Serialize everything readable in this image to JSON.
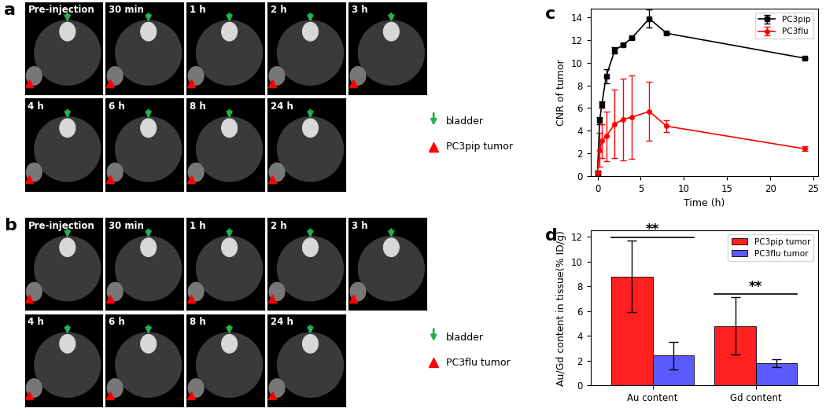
{
  "image_panels": [
    {
      "panel": "a",
      "frames": [
        "Pre-injection",
        "30 min",
        "1 h",
        "2 h",
        "3 h",
        "4 h",
        "6 h",
        "8 h",
        "24 h"
      ],
      "keys": [
        {
          "label": "bladder",
          "color": "#22b14c",
          "marker": "arrow"
        },
        {
          "label": "PC3pip tumor",
          "color": "#ff0000",
          "marker": "triangle"
        }
      ]
    },
    {
      "panel": "b",
      "frames": [
        "Pre-injection",
        "30 min",
        "1 h",
        "2 h",
        "3 h",
        "4 h",
        "6 h",
        "8 h",
        "24 h"
      ],
      "keys": [
        {
          "label": "bladder",
          "color": "#22b14c",
          "marker": "arrow"
        },
        {
          "label": "PC3flu tumor",
          "color": "#ff0000",
          "marker": "triangle"
        }
      ]
    }
  ],
  "chart_data": [
    {
      "panel": "c",
      "type": "line",
      "x": [
        0,
        0.25,
        0.5,
        1,
        2,
        3,
        4,
        6,
        8,
        24
      ],
      "series": [
        {
          "name": "PC3pip",
          "color": "#000000",
          "marker": "square",
          "values": [
            0.3,
            4.9,
            6.3,
            8.8,
            11.1,
            11.6,
            12.2,
            13.9,
            12.6,
            10.4
          ],
          "errors": [
            0.1,
            0.3,
            0.3,
            0.6,
            0.3,
            0.1,
            0.1,
            0.8,
            0.1,
            0.1
          ]
        },
        {
          "name": "PC3flu",
          "color": "#ff0000",
          "marker": "circle",
          "values": [
            0.3,
            2.3,
            3.1,
            3.5,
            4.6,
            5.0,
            5.2,
            5.7,
            4.4,
            2.4
          ],
          "errors": [
            0.1,
            1.5,
            1.5,
            2.2,
            3.0,
            3.6,
            3.7,
            2.6,
            0.5,
            0.2
          ]
        }
      ],
      "x_label": "Time (h)",
      "y_label": "CNR of tumor",
      "xlim": [
        -0.8,
        25.5
      ],
      "xticks": [
        0,
        5,
        10,
        15,
        20,
        25
      ],
      "ylim": [
        0,
        14.8
      ],
      "yticks": [
        0,
        2,
        4,
        6,
        8,
        10,
        12,
        14
      ],
      "legend": "upper right"
    },
    {
      "panel": "d",
      "type": "bar",
      "categories": [
        "Au content",
        "Gd content"
      ],
      "series": [
        {
          "name": "PC3pip tumor",
          "color": "#ff2020",
          "values": [
            8.8,
            4.8
          ],
          "errors": [
            2.9,
            2.3
          ]
        },
        {
          "name": "PC3flu tumor",
          "color": "#5a5aff",
          "values": [
            2.4,
            1.8
          ],
          "errors": [
            1.1,
            0.3
          ]
        }
      ],
      "y_label": "Au/Gd content in tissue(% ID/g)",
      "ylim": [
        0,
        12.5
      ],
      "yticks": [
        0,
        2,
        4,
        6,
        8,
        10,
        12
      ],
      "significance": [
        {
          "category": "Au content",
          "label": "**"
        },
        {
          "category": "Gd content",
          "label": "**"
        }
      ],
      "legend": "upper right"
    }
  ]
}
